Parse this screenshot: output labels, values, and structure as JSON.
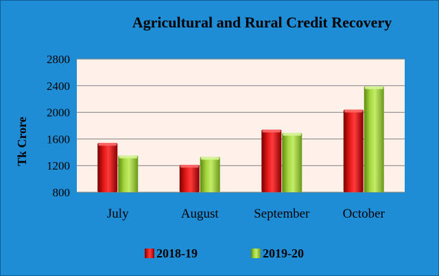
{
  "chart_data": {
    "type": "bar",
    "title": "Agricultural and Rural Credit Recovery",
    "ylabel": "Tk Crore",
    "xlabel": "",
    "categories": [
      "July",
      "August",
      "September",
      "October"
    ],
    "series": [
      {
        "name": "2018-19",
        "values": [
          1540,
          1210,
          1740,
          2040
        ]
      },
      {
        "name": "2019-20",
        "values": [
          1350,
          1330,
          1690,
          2390
        ]
      }
    ],
    "ylim": [
      800,
      2800
    ],
    "yticks": [
      "800",
      "1200",
      "1600",
      "2000",
      "2400",
      "2800"
    ],
    "grid": true,
    "legend": "bottom",
    "colors": {
      "background": "#1F8DD6",
      "plot_area": "#FDF1EA",
      "series_0": "#D20E0E",
      "series_1": "#9ACD32",
      "gridline": "#7F7F7F"
    }
  }
}
